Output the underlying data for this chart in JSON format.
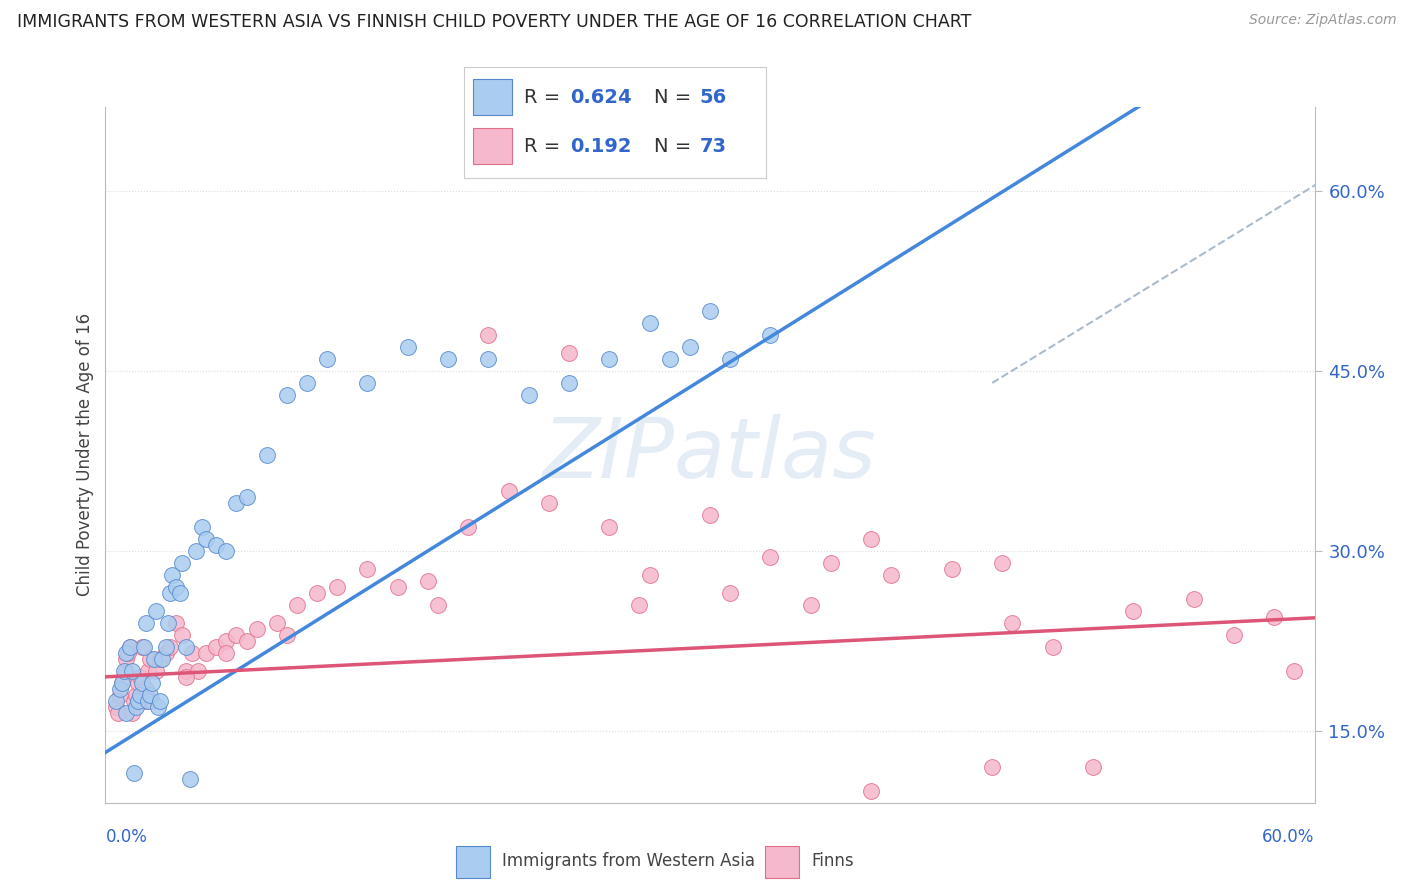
{
  "title": "IMMIGRANTS FROM WESTERN ASIA VS FINNISH CHILD POVERTY UNDER THE AGE OF 16 CORRELATION CHART",
  "source": "Source: ZipAtlas.com",
  "ylabel": "Child Poverty Under the Age of 16",
  "series1_label": "Immigrants from Western Asia",
  "series2_label": "Finns",
  "R1": "0.624",
  "N1": "56",
  "R2": "0.192",
  "N2": "73",
  "xmin": 0.0,
  "xmax": 0.6,
  "ymin": 0.09,
  "ymax": 0.67,
  "ytick_values": [
    0.15,
    0.3,
    0.45,
    0.6
  ],
  "ytick_labels": [
    "15.0%",
    "30.0%",
    "45.0%",
    "60.0%"
  ],
  "blue_color": "#aaccf0",
  "blue_edge": "#5588cc",
  "pink_color": "#f5b8cc",
  "pink_edge": "#e0708a",
  "trend_blue": "#4488dd",
  "trend_pink": "#dd5577",
  "accent_blue": "#3366cc",
  "grid_color": "#dddddd",
  "blue_trend_slope": 1.05,
  "blue_trend_intercept": 0.132,
  "pink_trend_slope": 0.082,
  "pink_trend_intercept": 0.195,
  "blue_x": [
    0.005,
    0.007,
    0.008,
    0.009,
    0.01,
    0.01,
    0.012,
    0.013,
    0.014,
    0.015,
    0.016,
    0.017,
    0.018,
    0.019,
    0.02,
    0.021,
    0.022,
    0.023,
    0.024,
    0.025,
    0.026,
    0.027,
    0.028,
    0.03,
    0.031,
    0.032,
    0.033,
    0.035,
    0.037,
    0.038,
    0.04,
    0.042,
    0.045,
    0.048,
    0.05,
    0.055,
    0.06,
    0.065,
    0.07,
    0.08,
    0.09,
    0.1,
    0.11,
    0.13,
    0.15,
    0.17,
    0.19,
    0.21,
    0.23,
    0.25,
    0.27,
    0.29,
    0.31,
    0.33,
    0.3,
    0.28
  ],
  "blue_y": [
    0.175,
    0.185,
    0.19,
    0.2,
    0.165,
    0.215,
    0.22,
    0.2,
    0.115,
    0.17,
    0.175,
    0.18,
    0.19,
    0.22,
    0.24,
    0.175,
    0.18,
    0.19,
    0.21,
    0.25,
    0.17,
    0.175,
    0.21,
    0.22,
    0.24,
    0.265,
    0.28,
    0.27,
    0.265,
    0.29,
    0.22,
    0.11,
    0.3,
    0.32,
    0.31,
    0.305,
    0.3,
    0.34,
    0.345,
    0.38,
    0.43,
    0.44,
    0.46,
    0.44,
    0.47,
    0.46,
    0.46,
    0.43,
    0.44,
    0.46,
    0.49,
    0.47,
    0.46,
    0.48,
    0.5,
    0.46
  ],
  "pink_x": [
    0.005,
    0.006,
    0.007,
    0.008,
    0.009,
    0.01,
    0.01,
    0.011,
    0.012,
    0.013,
    0.014,
    0.015,
    0.016,
    0.017,
    0.018,
    0.019,
    0.02,
    0.021,
    0.022,
    0.023,
    0.025,
    0.027,
    0.03,
    0.032,
    0.035,
    0.038,
    0.04,
    0.043,
    0.046,
    0.05,
    0.055,
    0.06,
    0.065,
    0.07,
    0.075,
    0.085,
    0.095,
    0.105,
    0.115,
    0.13,
    0.145,
    0.16,
    0.18,
    0.2,
    0.22,
    0.25,
    0.27,
    0.3,
    0.33,
    0.36,
    0.39,
    0.42,
    0.45,
    0.47,
    0.51,
    0.54,
    0.56,
    0.58,
    0.59,
    0.35,
    0.38,
    0.44,
    0.49,
    0.165,
    0.09,
    0.06,
    0.04,
    0.19,
    0.23,
    0.31,
    0.38,
    0.445,
    0.265
  ],
  "pink_y": [
    0.17,
    0.165,
    0.18,
    0.19,
    0.195,
    0.2,
    0.21,
    0.215,
    0.22,
    0.165,
    0.175,
    0.18,
    0.19,
    0.195,
    0.22,
    0.175,
    0.185,
    0.2,
    0.21,
    0.175,
    0.2,
    0.21,
    0.215,
    0.22,
    0.24,
    0.23,
    0.2,
    0.215,
    0.2,
    0.215,
    0.22,
    0.225,
    0.23,
    0.225,
    0.235,
    0.24,
    0.255,
    0.265,
    0.27,
    0.285,
    0.27,
    0.275,
    0.32,
    0.35,
    0.34,
    0.32,
    0.28,
    0.33,
    0.295,
    0.29,
    0.28,
    0.285,
    0.24,
    0.22,
    0.25,
    0.26,
    0.23,
    0.245,
    0.2,
    0.255,
    0.1,
    0.12,
    0.12,
    0.255,
    0.23,
    0.215,
    0.195,
    0.48,
    0.465,
    0.265,
    0.31,
    0.29,
    0.255
  ]
}
